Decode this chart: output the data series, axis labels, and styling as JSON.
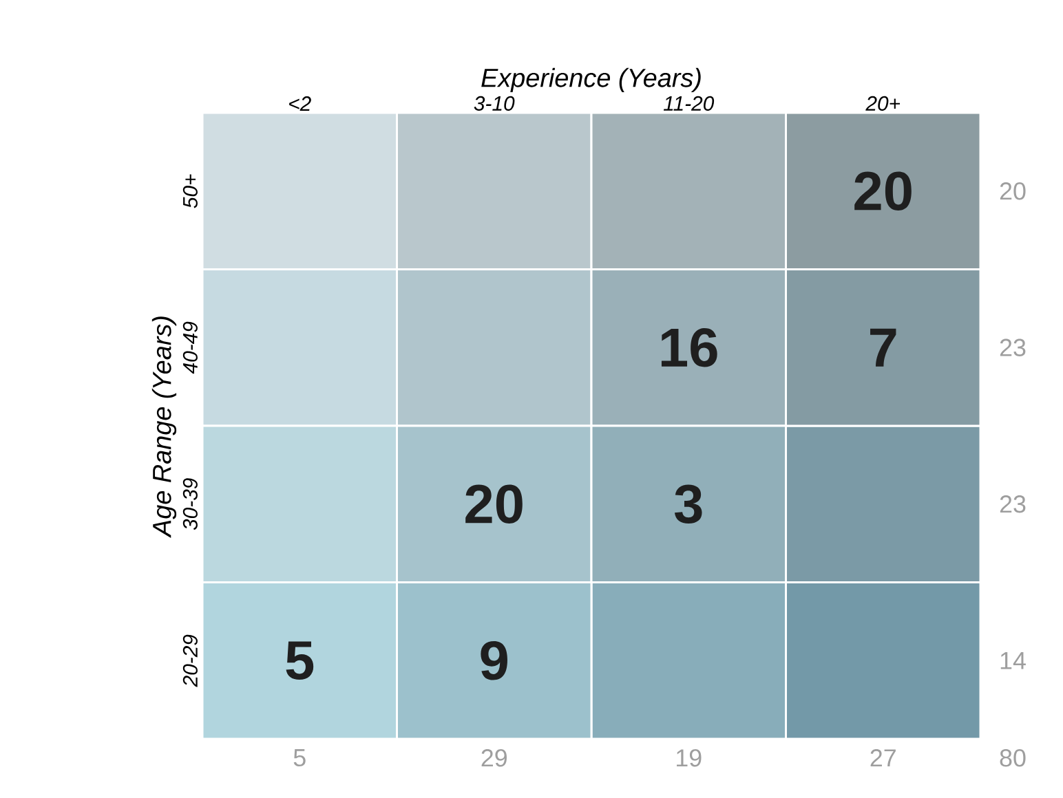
{
  "chart_data": {
    "type": "heatmap",
    "xlabel": "Experience (Years)",
    "ylabel": "Age Range (Years)",
    "categories": [
      "<2",
      "3-10",
      "11-20",
      "20+"
    ],
    "y_categories": [
      "50+",
      "40-49",
      "30-39",
      "20-29"
    ],
    "y2_categories": [
      "20",
      "23",
      "23",
      "14"
    ],
    "cells": [
      [
        null,
        null,
        null,
        20
      ],
      [
        null,
        null,
        16,
        7
      ],
      [
        null,
        20,
        3,
        null
      ],
      [
        5,
        9,
        null,
        null
      ]
    ],
    "data_labels": true,
    "colors": [
      "#d0dde2",
      "#8c9ca1",
      "#b1d5de",
      "#7399a8"
    ],
    "annotations": [
      "5",
      "29",
      "19",
      "27",
      "80"
    ]
  }
}
